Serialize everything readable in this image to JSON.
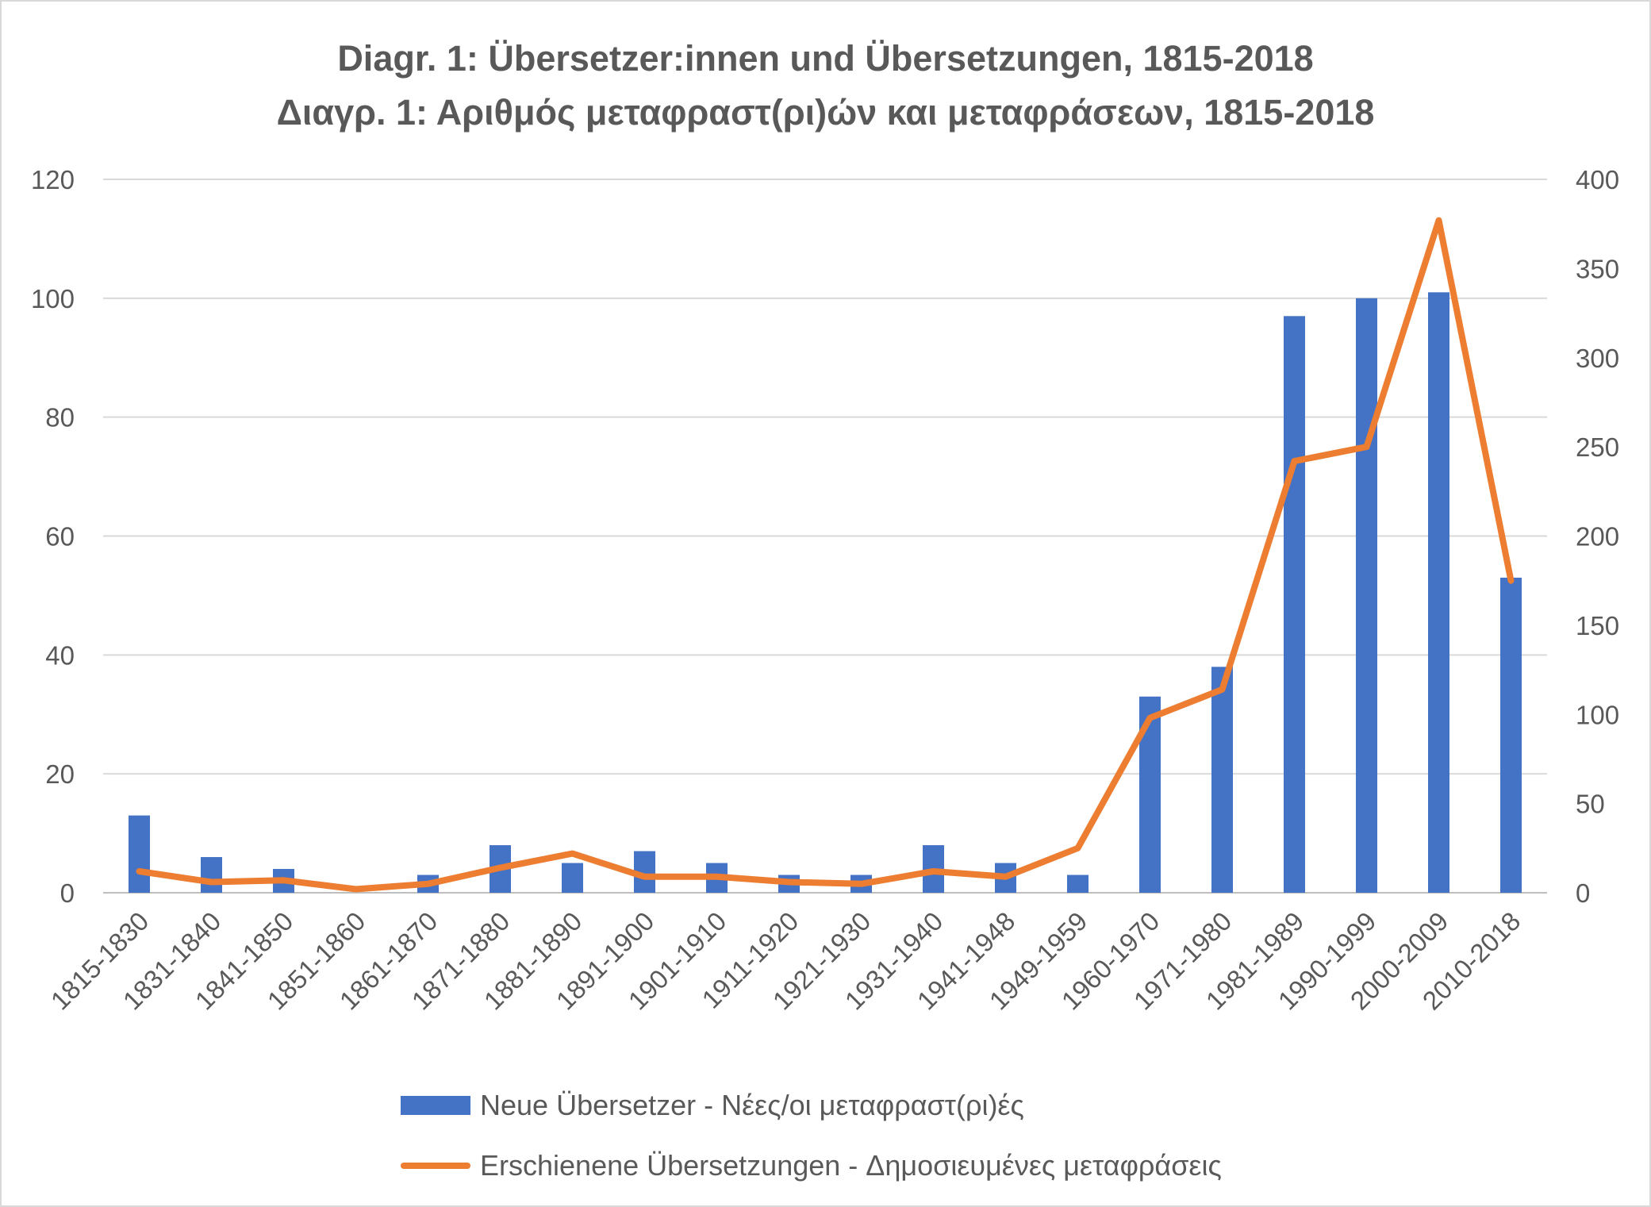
{
  "chart_data": {
    "type": "bar",
    "title": "Diagr. 1: Übersetzer:innen und Übersetzungen, 1815-2018",
    "subtitle": "Διαγρ. 1: Αριθμός μεταφραστ(ρι)ών και μεταφράσεων, 1815-2018",
    "categories": [
      "1815-1830",
      "1831-1840",
      "1841-1850",
      "1851-1860",
      "1861-1870",
      "1871-1880",
      "1881-1890",
      "1891-1900",
      "1901-1910",
      "1911-1920",
      "1921-1930",
      "1931-1940",
      "1941-1948",
      "1949-1959",
      "1960-1970",
      "1971-1980",
      "1981-1989",
      "1990-1999",
      "2000-2009",
      "2010-2018"
    ],
    "series": [
      {
        "name": "Neue Übersetzer - Νέες/οι μεταφραστ(ρι)ές",
        "type": "bar",
        "axis": "left",
        "color": "#4472c4",
        "values": [
          13,
          6,
          4,
          0,
          3,
          8,
          5,
          7,
          5,
          3,
          3,
          8,
          5,
          3,
          33,
          38,
          97,
          100,
          101,
          53
        ]
      },
      {
        "name": "Erschienene Übersetzungen - Δημοσιευμένες μεταφράσεις",
        "type": "line",
        "axis": "right",
        "color": "#ed7d31",
        "values": [
          12,
          6,
          7,
          2,
          5,
          14,
          22,
          9,
          9,
          6,
          5,
          12,
          9,
          25,
          98,
          114,
          242,
          250,
          377,
          175
        ]
      }
    ],
    "y_left": {
      "ylim": [
        0,
        120
      ],
      "ticks": [
        "0",
        "20",
        "40",
        "60",
        "80",
        "100",
        "120"
      ]
    },
    "y_right": {
      "ylim": [
        0,
        400
      ],
      "ticks": [
        "0",
        "50",
        "100",
        "150",
        "200",
        "250",
        "300",
        "350",
        "400"
      ]
    },
    "grid": true,
    "legend_position": "bottom"
  }
}
